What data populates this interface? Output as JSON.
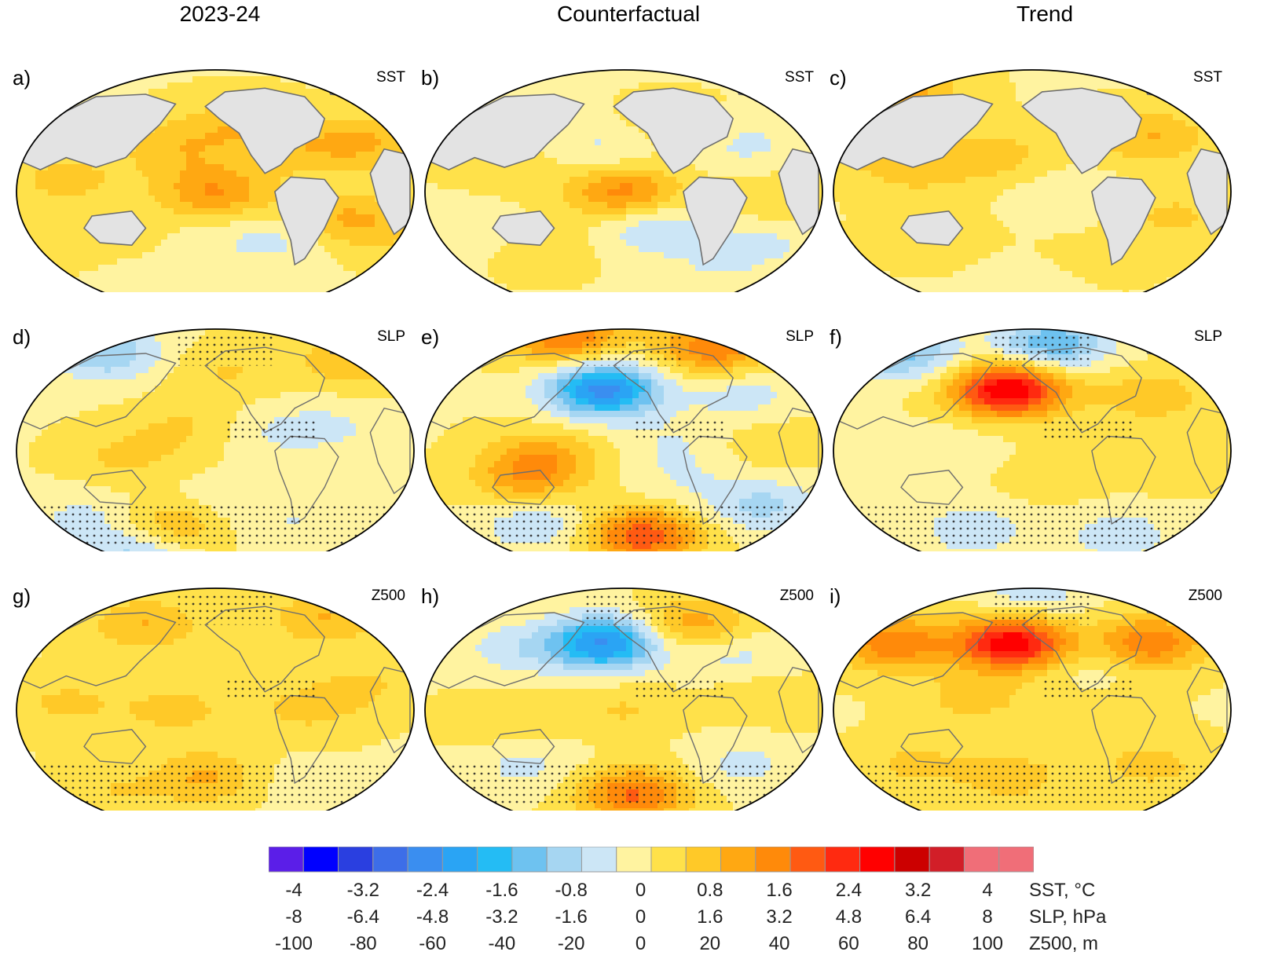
{
  "column_titles": [
    "2023-24",
    "Counterfactual",
    "Trend"
  ],
  "variables": [
    "SST",
    "SLP",
    "Z500"
  ],
  "panels": [
    {
      "label": "a)",
      "column": "2023-24",
      "variable": "SST"
    },
    {
      "label": "b)",
      "column": "Counterfactual",
      "variable": "SST"
    },
    {
      "label": "c)",
      "column": "Trend",
      "variable": "SST"
    },
    {
      "label": "d)",
      "column": "2023-24",
      "variable": "SLP"
    },
    {
      "label": "e)",
      "column": "Counterfactual",
      "variable": "SLP"
    },
    {
      "label": "f)",
      "column": "Trend",
      "variable": "SLP"
    },
    {
      "label": "g)",
      "column": "2023-24",
      "variable": "Z500"
    },
    {
      "label": "h)",
      "column": "Counterfactual",
      "variable": "Z500"
    },
    {
      "label": "i)",
      "column": "Trend",
      "variable": "Z500"
    }
  ],
  "chart_data": {
    "type": "heatmap",
    "projection": "Robinson-like global map, Pacific-centred",
    "colorbar": {
      "colors": [
        "#5b1ee8",
        "#0000ff",
        "#2a3fe0",
        "#3d6ee8",
        "#3a8ef0",
        "#2aa4f4",
        "#24bcf4",
        "#6ec2f0",
        "#a6d6f2",
        "#cce6f6",
        "#fff3a0",
        "#ffe14a",
        "#ffc928",
        "#ffa812",
        "#ff8a0a",
        "#ff5a12",
        "#ff2a10",
        "#ff0000",
        "#cc0000",
        "#d21e28",
        "#f06e78"
      ],
      "rows": [
        {
          "unit": "SST, °C",
          "ticks": [
            "-4",
            "-3.2",
            "-2.4",
            "-1.6",
            "-0.8",
            "0",
            "0.8",
            "1.6",
            "2.4",
            "3.2",
            "4"
          ]
        },
        {
          "unit": "SLP, hPa",
          "ticks": [
            "-8",
            "-6.4",
            "-4.8",
            "-3.2",
            "-1.6",
            "0",
            "1.6",
            "3.2",
            "4.8",
            "6.4",
            "8"
          ]
        },
        {
          "unit": "Z500, m",
          "ticks": [
            "-100",
            "-80",
            "-60",
            "-40",
            "-20",
            "0",
            "20",
            "40",
            "60",
            "80",
            "100"
          ]
        }
      ]
    },
    "fields": [
      {
        "panel": "a)",
        "blobs": [
          [
            -0.8,
            -0.55,
            0.5
          ],
          [
            -0.4,
            -0.4,
            0.6
          ],
          [
            0.0,
            0.0,
            1.9
          ],
          [
            0.6,
            -0.2,
            1.0
          ],
          [
            -0.75,
            0.1,
            0.9
          ],
          [
            0.1,
            0.55,
            1.0
          ],
          [
            0.4,
            0.35,
            0.8
          ],
          [
            -0.2,
            0.35,
            1.0
          ],
          [
            0.3,
            -0.38,
            -0.9
          ],
          [
            -0.2,
            -0.45,
            -0.5
          ],
          [
            0.75,
            0.4,
            1.3
          ],
          [
            0.8,
            -0.3,
            0.8
          ],
          [
            -0.5,
            -0.75,
            -0.5
          ]
        ]
      },
      {
        "panel": "b)",
        "blobs": [
          [
            0.0,
            0.0,
            2.2
          ],
          [
            -0.1,
            0.35,
            -0.8
          ],
          [
            0.15,
            -0.3,
            -1.2
          ],
          [
            0.6,
            0.4,
            -0.8
          ],
          [
            -0.8,
            -0.3,
            -0.6
          ],
          [
            0.7,
            -0.4,
            -0.8
          ],
          [
            0.45,
            -0.65,
            -0.5
          ],
          [
            0.25,
            0.52,
            0.6
          ],
          [
            0.8,
            -0.1,
            0.7
          ],
          [
            -0.6,
            0.2,
            0.5
          ],
          [
            -0.4,
            -0.45,
            0.5
          ]
        ]
      },
      {
        "panel": "c)",
        "blobs": [
          [
            0.2,
            -0.05,
            -0.6
          ],
          [
            -0.2,
            0.3,
            1.0
          ],
          [
            0.6,
            0.45,
            1.3
          ],
          [
            -0.6,
            0.2,
            1.0
          ],
          [
            0.7,
            -0.2,
            0.8
          ],
          [
            -0.5,
            -0.35,
            0.5
          ],
          [
            0.3,
            -0.55,
            0.4
          ],
          [
            -0.85,
            0.45,
            0.9
          ],
          [
            0.05,
            -0.7,
            -0.3
          ],
          [
            -0.65,
            0.85,
            1.6
          ]
        ]
      },
      {
        "panel": "d)",
        "blobs": [
          [
            -0.55,
            0.8,
            -1.8
          ],
          [
            -0.15,
            0.2,
            0.7
          ],
          [
            0.05,
            0.65,
            0.7
          ],
          [
            0.3,
            0.15,
            -0.6
          ],
          [
            0.6,
            0.2,
            -0.6
          ],
          [
            0.7,
            0.75,
            1.3
          ],
          [
            -0.45,
            -0.05,
            0.8
          ],
          [
            -0.2,
            -0.6,
            1.5
          ],
          [
            0.0,
            -0.45,
            -0.7
          ],
          [
            0.4,
            -0.55,
            -0.7
          ],
          [
            -0.65,
            -0.55,
            -0.8
          ],
          [
            -0.4,
            -0.85,
            -1.4
          ],
          [
            0.3,
            -0.4,
            0.3
          ]
        ]
      },
      {
        "panel": "e)",
        "blobs": [
          [
            -0.1,
            0.5,
            -4.0
          ],
          [
            -0.3,
            0.95,
            2.6
          ],
          [
            0.45,
            0.85,
            2.4
          ],
          [
            0.6,
            0.45,
            -0.9
          ],
          [
            0.25,
            0.05,
            -0.6
          ],
          [
            -0.4,
            -0.05,
            1.5
          ],
          [
            -0.5,
            -0.25,
            1.4
          ],
          [
            0.1,
            -0.7,
            3.0
          ],
          [
            0.7,
            -0.45,
            -1.4
          ],
          [
            -0.45,
            -0.6,
            -1.2
          ],
          [
            0.3,
            -0.25,
            -0.5
          ],
          [
            0.75,
            0.05,
            0.6
          ]
        ]
      },
      {
        "panel": "f)",
        "blobs": [
          [
            -0.65,
            0.8,
            -2.0
          ],
          [
            0.1,
            0.88,
            -2.4
          ],
          [
            -0.12,
            0.5,
            4.5
          ],
          [
            0.6,
            0.45,
            1.1
          ],
          [
            -0.4,
            0.0,
            -0.5
          ],
          [
            0.1,
            -0.2,
            0.5
          ],
          [
            -0.3,
            -0.65,
            -1.0
          ],
          [
            0.45,
            -0.7,
            -1.0
          ],
          [
            0.7,
            -0.1,
            0.5
          ],
          [
            -0.85,
            -0.2,
            -0.3
          ]
        ]
      },
      {
        "panel": "g)",
        "blobs": [
          [
            -0.35,
            0.7,
            1.3
          ],
          [
            0.55,
            0.75,
            1.3
          ],
          [
            -0.2,
            0.0,
            0.9
          ],
          [
            0.45,
            0.0,
            0.8
          ],
          [
            -0.45,
            -0.55,
            -0.5
          ],
          [
            -0.05,
            -0.55,
            1.4
          ],
          [
            -0.5,
            -0.62,
            1.0
          ],
          [
            0.35,
            -0.6,
            -0.3
          ],
          [
            0.75,
            0.2,
            0.7
          ],
          [
            -0.75,
            0.05,
            0.8
          ]
        ]
      },
      {
        "panel": "h)",
        "blobs": [
          [
            -0.1,
            0.55,
            -3.8
          ],
          [
            0.35,
            0.7,
            1.7
          ],
          [
            0.55,
            0.45,
            -0.9
          ],
          [
            -0.55,
            0.5,
            -0.9
          ],
          [
            0.0,
            0.0,
            0.7
          ],
          [
            -0.5,
            -0.45,
            -0.8
          ],
          [
            0.6,
            -0.45,
            -0.8
          ],
          [
            0.05,
            -0.7,
            2.6
          ],
          [
            -0.6,
            -0.1,
            0.6
          ],
          [
            0.7,
            0.1,
            0.6
          ]
        ]
      },
      {
        "panel": "i)",
        "blobs": [
          [
            -0.7,
            0.55,
            2.4
          ],
          [
            -0.1,
            0.55,
            4.3
          ],
          [
            0.6,
            0.55,
            2.4
          ],
          [
            0.3,
            0.3,
            -0.5
          ],
          [
            0.0,
            0.95,
            -1.0
          ],
          [
            -0.3,
            0.1,
            0.9
          ],
          [
            0.3,
            0.0,
            0.7
          ],
          [
            -0.1,
            -0.55,
            1.0
          ],
          [
            0.6,
            -0.45,
            0.9
          ],
          [
            -0.6,
            -0.45,
            0.8
          ]
        ]
      }
    ],
    "stippled_panels": [
      "d)",
      "e)",
      "f)",
      "g)",
      "h)",
      "i)"
    ]
  }
}
